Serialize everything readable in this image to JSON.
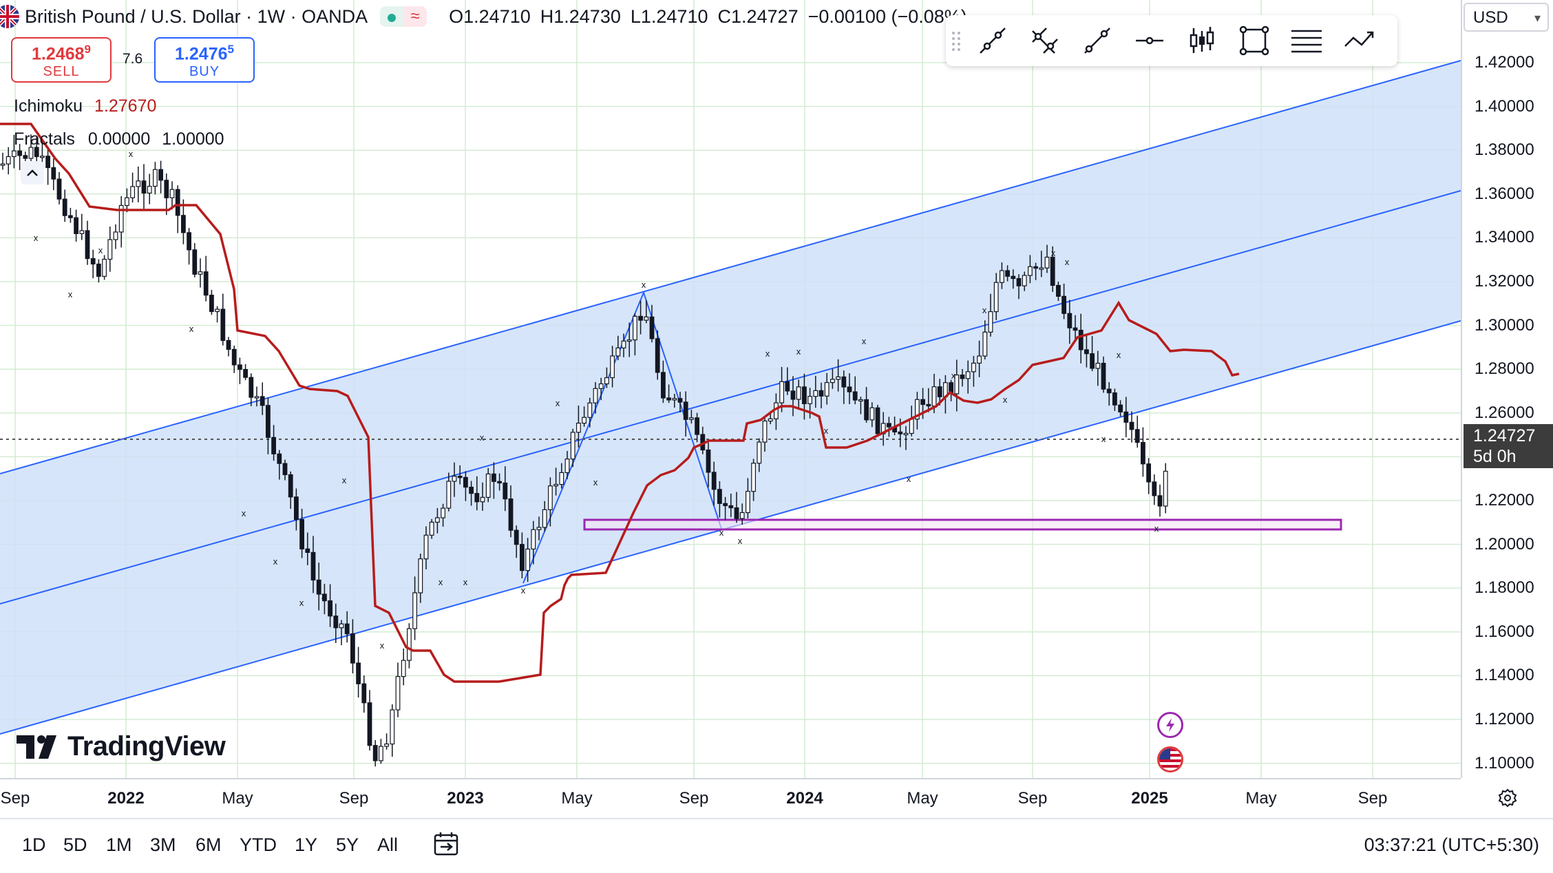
{
  "header": {
    "symbol": "British Pound / U.S. Dollar · 1W · OANDA",
    "open": "O1.24710",
    "high": "H1.24730",
    "low": "L1.24710",
    "close": "C1.24727",
    "change": "−0.00100 (−0.08%)"
  },
  "trade": {
    "sell_price": "1.2468",
    "sell_sup": "9",
    "sell_label": "SELL",
    "spread": "7.6",
    "buy_price": "1.2476",
    "buy_sup": "5",
    "buy_label": "BUY"
  },
  "indicators": {
    "ichimoku_label": "Ichimoku",
    "ichimoku_value": "1.27670",
    "fractals_label": "Fractals",
    "fractals_value1": "0.00000",
    "fractals_value2": "1.00000"
  },
  "price_axis": {
    "currency": "USD",
    "labels": [
      "1.42000",
      "1.40000",
      "1.38000",
      "1.36000",
      "1.34000",
      "1.32000",
      "1.30000",
      "1.28000",
      "1.26000",
      "1.24000",
      "1.22000",
      "1.20000",
      "1.18000",
      "1.16000",
      "1.14000",
      "1.12000",
      "1.10000"
    ],
    "current_price": "1.24727",
    "countdown": "5d 0h"
  },
  "time_axis": {
    "labels": [
      "Sep",
      "2022",
      "May",
      "Sep",
      "2023",
      "May",
      "Sep",
      "2024",
      "May",
      "Sep",
      "2025",
      "May",
      "Sep"
    ]
  },
  "toolbar": {
    "tools": [
      "grip-icon",
      "trend-line-icon",
      "parallel-channel-icon",
      "ray-icon",
      "horizontal-line-icon",
      "candles-icon",
      "rectangle-icon",
      "text-lines-icon",
      "path-icon"
    ]
  },
  "watermark": "TradingView",
  "bottom_bar": {
    "ranges": [
      "1D",
      "5D",
      "1M",
      "3M",
      "6M",
      "YTD",
      "1Y",
      "5Y",
      "All"
    ],
    "clock": "03:37:21 (UTC+5:30)"
  },
  "colors": {
    "channel_fill": "#cfe0f8",
    "channel_line": "#2962ff",
    "ichimoku": "#b71c1c",
    "sell": "#e03a3e",
    "buy": "#2962ff",
    "rect": "#9c27b0"
  }
}
